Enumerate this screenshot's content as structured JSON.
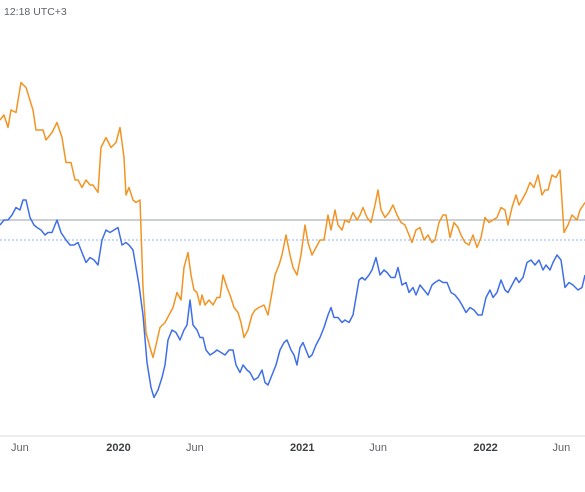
{
  "header": {
    "timestamp": "12:18 UTC+3"
  },
  "chart_data": {
    "type": "line",
    "title": "",
    "xlabel": "",
    "ylabel": "",
    "grid": false,
    "x_tick_labels": [
      {
        "label": "Jun",
        "date": "2019-06-01",
        "bold": false
      },
      {
        "label": "2020",
        "date": "2020-01-01",
        "bold": true
      },
      {
        "label": "Jun",
        "date": "2020-06-01",
        "bold": false
      },
      {
        "label": "2021",
        "date": "2021-01-01",
        "bold": true
      },
      {
        "label": "Jun",
        "date": "2021-06-01",
        "bold": false
      },
      {
        "label": "2022",
        "date": "2022-01-01",
        "bold": true
      },
      {
        "label": "Jun",
        "date": "2022-06-01",
        "bold": false
      }
    ],
    "reference_lines": [
      {
        "value": 72,
        "style": "solid",
        "color": "#9aa0a6"
      },
      {
        "value": 64,
        "style": "dotted",
        "color": "#8ab4f8"
      }
    ],
    "colors": {
      "series_1": "#f29423",
      "series_2": "#3f6fe8"
    },
    "series": [
      {
        "color": "#f29423",
        "values": [
          [
            0,
            112
          ],
          [
            4,
            114
          ],
          [
            8,
            109
          ],
          [
            11,
            116
          ],
          [
            16,
            115
          ],
          [
            21,
            127
          ],
          [
            26,
            125
          ],
          [
            33,
            116
          ],
          [
            36,
            108
          ],
          [
            43,
            108
          ],
          [
            46,
            104
          ],
          [
            52,
            107
          ],
          [
            57,
            111
          ],
          [
            62,
            105
          ],
          [
            66,
            95
          ],
          [
            71,
            95
          ],
          [
            75,
            88
          ],
          [
            78,
            88
          ],
          [
            82,
            85
          ],
          [
            86,
            88
          ],
          [
            90,
            86
          ],
          [
            93,
            86
          ],
          [
            98,
            83
          ],
          [
            101,
            101
          ],
          [
            106,
            105
          ],
          [
            111,
            101
          ],
          [
            116,
            103
          ],
          [
            120,
            109
          ],
          [
            124,
            97
          ],
          [
            126,
            82
          ],
          [
            129,
            85
          ],
          [
            133,
            80
          ],
          [
            136,
            79
          ],
          [
            140,
            80
          ],
          [
            143,
            45
          ],
          [
            146,
            27
          ],
          [
            150,
            21
          ],
          [
            153,
            17
          ],
          [
            156,
            22
          ],
          [
            160,
            29
          ],
          [
            165,
            31
          ],
          [
            169,
            34
          ],
          [
            173,
            37
          ],
          [
            177,
            43
          ],
          [
            181,
            40
          ],
          [
            184,
            53
          ],
          [
            188,
            59
          ],
          [
            191,
            50
          ],
          [
            194,
            44
          ],
          [
            197,
            43
          ],
          [
            200,
            38
          ],
          [
            202,
            42
          ],
          [
            205,
            38
          ],
          [
            209,
            40
          ],
          [
            213,
            38
          ],
          [
            217,
            41
          ],
          [
            220,
            41
          ],
          [
            223,
            50
          ],
          [
            227,
            45
          ],
          [
            230,
            42
          ],
          [
            234,
            37
          ],
          [
            238,
            35
          ],
          [
            241,
            31
          ],
          [
            244,
            25
          ],
          [
            248,
            28
          ],
          [
            252,
            34
          ],
          [
            255,
            36
          ],
          [
            259,
            37
          ],
          [
            264,
            38
          ],
          [
            268,
            34
          ],
          [
            272,
            43
          ],
          [
            275,
            50
          ],
          [
            279,
            54
          ],
          [
            282,
            58
          ],
          [
            286,
            66
          ],
          [
            290,
            58
          ],
          [
            293,
            53
          ],
          [
            297,
            50
          ],
          [
            301,
            58
          ],
          [
            305,
            70
          ],
          [
            308,
            63
          ],
          [
            312,
            58
          ],
          [
            316,
            61
          ],
          [
            320,
            64
          ],
          [
            324,
            64
          ],
          [
            328,
            74
          ],
          [
            331,
            68
          ],
          [
            335,
            76
          ],
          [
            338,
            70
          ],
          [
            342,
            68
          ],
          [
            345,
            72
          ],
          [
            349,
            71
          ],
          [
            353,
            75
          ],
          [
            357,
            72
          ],
          [
            360,
            74
          ],
          [
            363,
            77
          ],
          [
            367,
            73
          ],
          [
            371,
            71
          ],
          [
            375,
            78
          ],
          [
            378,
            84
          ],
          [
            381,
            76
          ],
          [
            385,
            73
          ],
          [
            389,
            75
          ],
          [
            393,
            78
          ],
          [
            397,
            74
          ],
          [
            401,
            71
          ],
          [
            405,
            70
          ],
          [
            409,
            66
          ],
          [
            412,
            63
          ],
          [
            416,
            68
          ],
          [
            420,
            69
          ],
          [
            424,
            64
          ],
          [
            428,
            66
          ],
          [
            432,
            63
          ],
          [
            435,
            64
          ],
          [
            439,
            71
          ],
          [
            443,
            74
          ],
          [
            446,
            74
          ],
          [
            450,
            65
          ],
          [
            454,
            71
          ],
          [
            458,
            69
          ],
          [
            461,
            66
          ],
          [
            465,
            63
          ],
          [
            469,
            62
          ],
          [
            473,
            66
          ],
          [
            477,
            61
          ],
          [
            481,
            65
          ],
          [
            485,
            73
          ],
          [
            489,
            71
          ],
          [
            493,
            72
          ],
          [
            497,
            73
          ],
          [
            501,
            77
          ],
          [
            505,
            76
          ],
          [
            508,
            70
          ],
          [
            512,
            77
          ],
          [
            516,
            82
          ],
          [
            519,
            78
          ],
          [
            522,
            80
          ],
          [
            526,
            83
          ],
          [
            530,
            87
          ],
          [
            534,
            85
          ],
          [
            538,
            90
          ],
          [
            542,
            82
          ],
          [
            545,
            84
          ],
          [
            548,
            84
          ],
          [
            552,
            90
          ],
          [
            556,
            89
          ],
          [
            560,
            92
          ],
          [
            564,
            67
          ],
          [
            568,
            70
          ],
          [
            572,
            74
          ],
          [
            577,
            72
          ],
          [
            580,
            76
          ],
          [
            585,
            79
          ]
        ]
      },
      {
        "color": "#3f6fe8",
        "values": [
          [
            0,
            70
          ],
          [
            4,
            72
          ],
          [
            8,
            72
          ],
          [
            12,
            74
          ],
          [
            16,
            77
          ],
          [
            20,
            76
          ],
          [
            23,
            80
          ],
          [
            26,
            80
          ],
          [
            30,
            73
          ],
          [
            34,
            70
          ],
          [
            37,
            69
          ],
          [
            41,
            68
          ],
          [
            45,
            66
          ],
          [
            48,
            67
          ],
          [
            52,
            67
          ],
          [
            57,
            72
          ],
          [
            61,
            67
          ],
          [
            66,
            64
          ],
          [
            70,
            62
          ],
          [
            74,
            62
          ],
          [
            78,
            63
          ],
          [
            81,
            60
          ],
          [
            86,
            55
          ],
          [
            90,
            57
          ],
          [
            94,
            56
          ],
          [
            98,
            54
          ],
          [
            102,
            64
          ],
          [
            106,
            68
          ],
          [
            110,
            67
          ],
          [
            114,
            68
          ],
          [
            118,
            69
          ],
          [
            122,
            62
          ],
          [
            126,
            63
          ],
          [
            129,
            62
          ],
          [
            133,
            60
          ],
          [
            136,
            53
          ],
          [
            139,
            46
          ],
          [
            143,
            34
          ],
          [
            147,
            15
          ],
          [
            151,
            5
          ],
          [
            154,
            1
          ],
          [
            158,
            4
          ],
          [
            162,
            9
          ],
          [
            165,
            14
          ],
          [
            168,
            24
          ],
          [
            172,
            28
          ],
          [
            176,
            27
          ],
          [
            180,
            24
          ],
          [
            184,
            28
          ],
          [
            187,
            30
          ],
          [
            190,
            40
          ],
          [
            193,
            30
          ],
          [
            197,
            28
          ],
          [
            200,
            25
          ],
          [
            203,
            25
          ],
          [
            206,
            20
          ],
          [
            210,
            18
          ],
          [
            214,
            19
          ],
          [
            217,
            20
          ],
          [
            221,
            19
          ],
          [
            225,
            18
          ],
          [
            229,
            20
          ],
          [
            233,
            20
          ],
          [
            236,
            14
          ],
          [
            240,
            11
          ],
          [
            243,
            14
          ],
          [
            247,
            12
          ],
          [
            250,
            11
          ],
          [
            254,
            8
          ],
          [
            258,
            9
          ],
          [
            262,
            12
          ],
          [
            265,
            7
          ],
          [
            268,
            6
          ],
          [
            272,
            10
          ],
          [
            276,
            14
          ],
          [
            280,
            20
          ],
          [
            284,
            23
          ],
          [
            287,
            24
          ],
          [
            291,
            20
          ],
          [
            294,
            18
          ],
          [
            297,
            14
          ],
          [
            300,
            21
          ],
          [
            303,
            23
          ],
          [
            306,
            20
          ],
          [
            309,
            17
          ],
          [
            312,
            18
          ],
          [
            316,
            22
          ],
          [
            320,
            25
          ],
          [
            324,
            29
          ],
          [
            328,
            34
          ],
          [
            331,
            37
          ],
          [
            334,
            33
          ],
          [
            338,
            33
          ],
          [
            342,
            31
          ],
          [
            345,
            32
          ],
          [
            349,
            31
          ],
          [
            353,
            34
          ],
          [
            356,
            41
          ],
          [
            359,
            48
          ],
          [
            362,
            49
          ],
          [
            365,
            48
          ],
          [
            369,
            50
          ],
          [
            372,
            52
          ],
          [
            376,
            57
          ],
          [
            380,
            50
          ],
          [
            384,
            52
          ],
          [
            387,
            51
          ],
          [
            391,
            49
          ],
          [
            395,
            49
          ],
          [
            398,
            53
          ],
          [
            402,
            46
          ],
          [
            406,
            47
          ],
          [
            409,
            43
          ],
          [
            413,
            45
          ],
          [
            416,
            42
          ],
          [
            420,
            46
          ],
          [
            424,
            44
          ],
          [
            428,
            42
          ],
          [
            432,
            46
          ],
          [
            435,
            47
          ],
          [
            439,
            48
          ],
          [
            443,
            47
          ],
          [
            447,
            47
          ],
          [
            451,
            43
          ],
          [
            455,
            42
          ],
          [
            459,
            40
          ],
          [
            462,
            38
          ],
          [
            466,
            35
          ],
          [
            470,
            37
          ],
          [
            474,
            36
          ],
          [
            478,
            34
          ],
          [
            482,
            34
          ],
          [
            486,
            41
          ],
          [
            490,
            44
          ],
          [
            493,
            41
          ],
          [
            497,
            43
          ],
          [
            501,
            48
          ],
          [
            505,
            44
          ],
          [
            508,
            43
          ],
          [
            512,
            46
          ],
          [
            516,
            49
          ],
          [
            519,
            47
          ],
          [
            523,
            49
          ],
          [
            527,
            55
          ],
          [
            531,
            56
          ],
          [
            535,
            54
          ],
          [
            539,
            56
          ],
          [
            543,
            52
          ],
          [
            546,
            54
          ],
          [
            550,
            52
          ],
          [
            553,
            55
          ],
          [
            557,
            58
          ],
          [
            561,
            56
          ],
          [
            565,
            45
          ],
          [
            569,
            47
          ],
          [
            573,
            46
          ],
          [
            578,
            44
          ],
          [
            582,
            45
          ],
          [
            585,
            50
          ]
        ]
      }
    ]
  }
}
